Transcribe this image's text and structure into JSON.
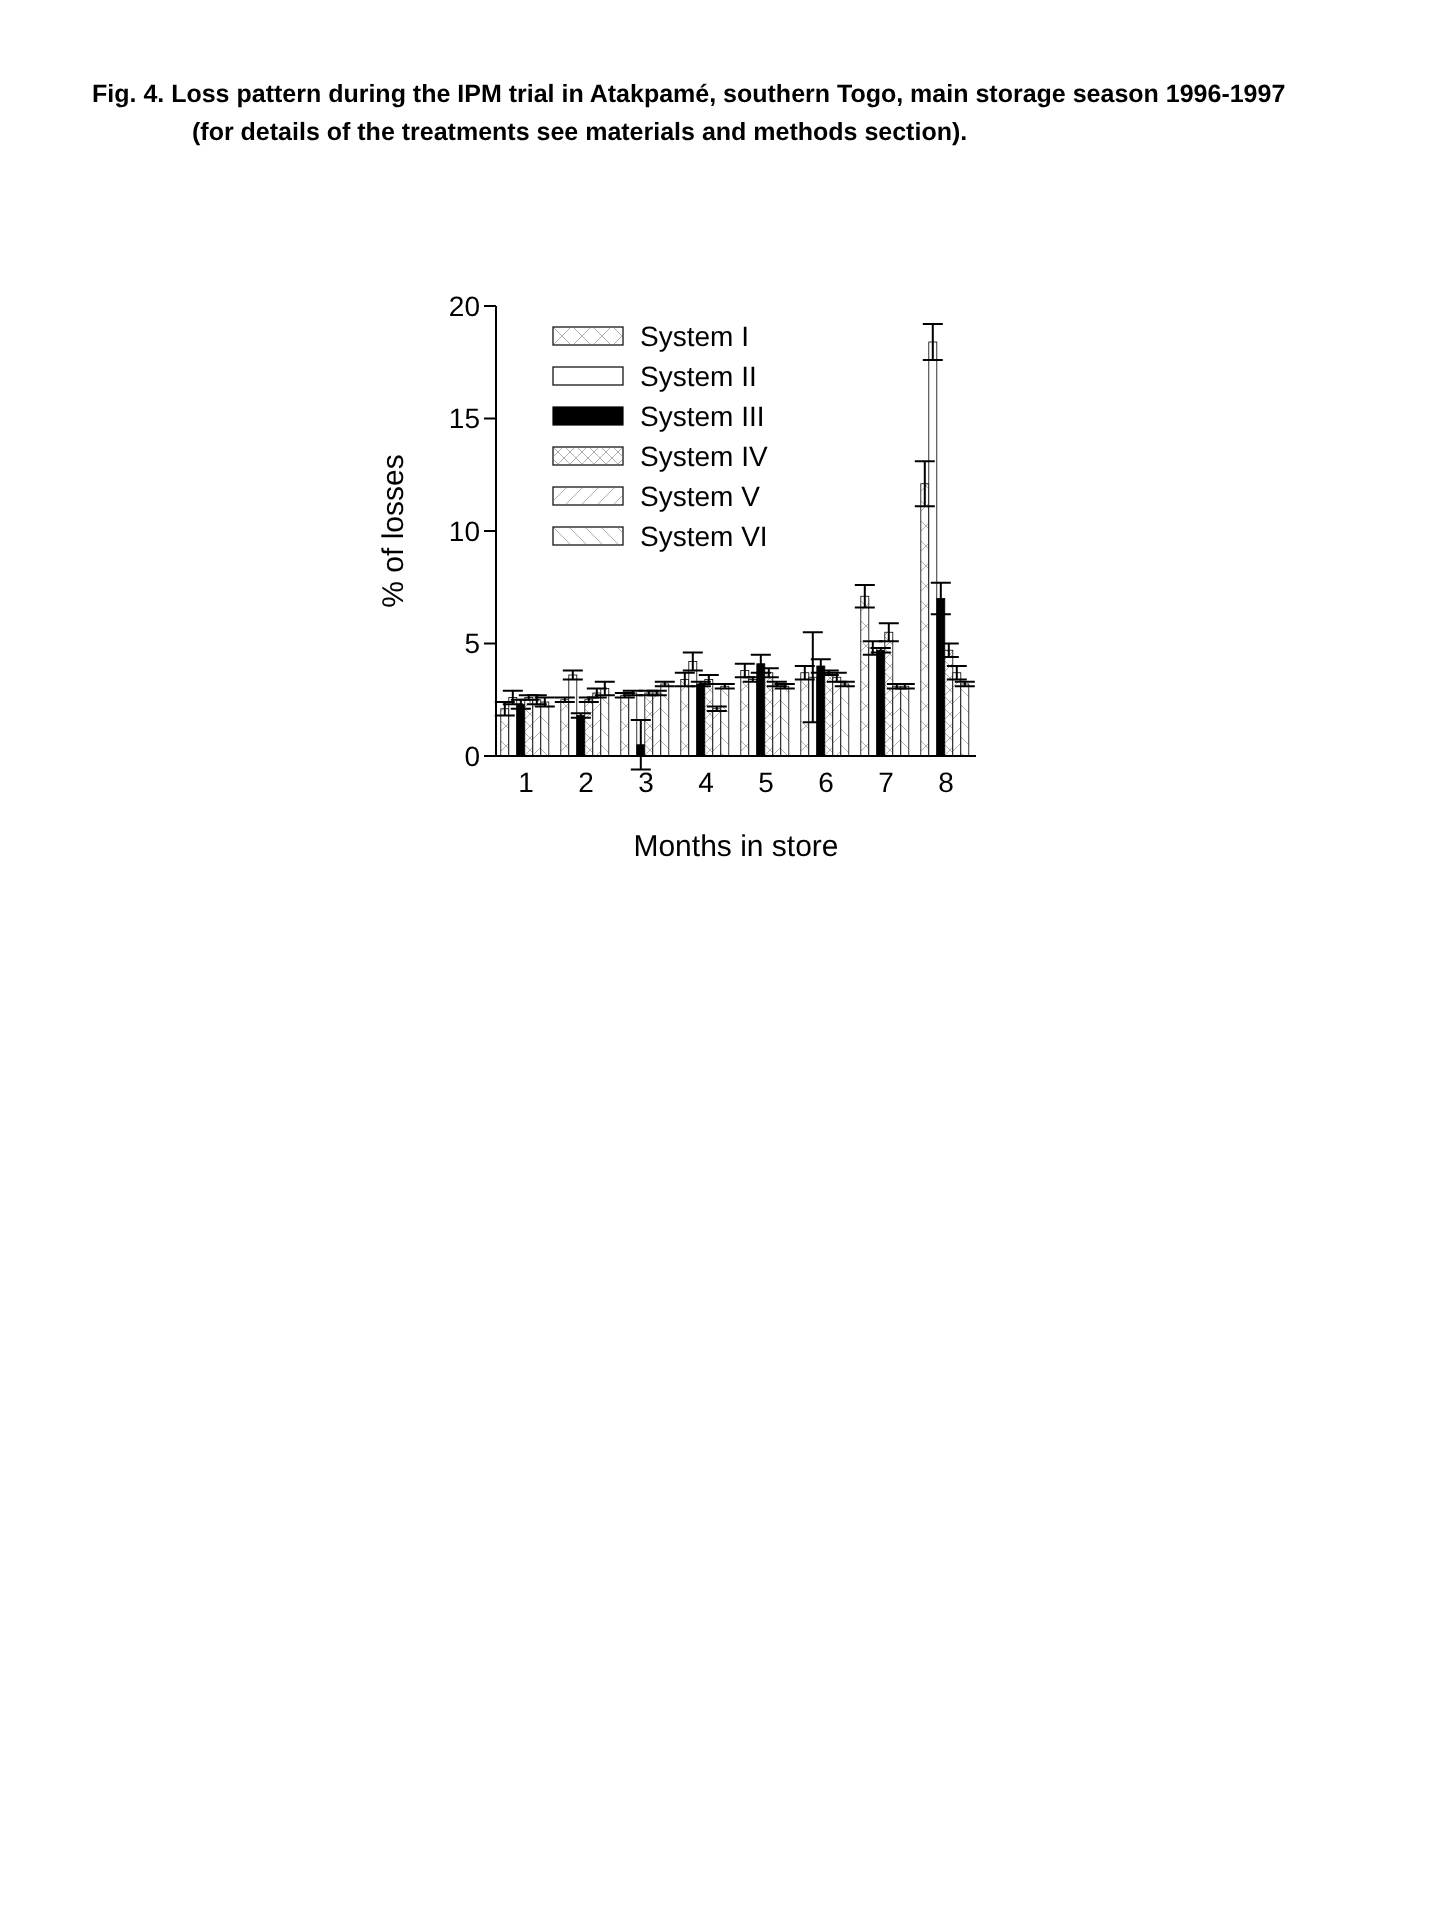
{
  "chart_data": {
    "type": "bar",
    "title": "Fig. 4. Loss pattern during the IPM trial in Atakpamé, southern Togo, main storage season 1996-1997 (for details of the treatments see materials and methods section).",
    "xlabel": "Months in store",
    "ylabel": "% of losses",
    "categories": [
      "1",
      "2",
      "3",
      "4",
      "5",
      "6",
      "7",
      "8"
    ],
    "series": [
      {
        "name": "System I",
        "color": "#ffffff",
        "values": [
          2.1,
          2.5,
          2.7,
          3.4,
          3.8,
          3.7,
          7.1,
          12.1
        ],
        "errors": [
          0.3,
          0.1,
          0.1,
          0.3,
          0.3,
          0.3,
          0.5,
          1.0
        ]
      },
      {
        "name": "System II",
        "color": "#ffffff",
        "values": [
          2.6,
          3.6,
          2.8,
          4.2,
          3.4,
          3.5,
          4.8,
          18.4
        ],
        "errors": [
          0.3,
          0.2,
          0.1,
          0.4,
          0.1,
          2.0,
          0.3,
          0.8
        ]
      },
      {
        "name": "System III",
        "color": "#000000",
        "values": [
          2.3,
          1.8,
          0.5,
          3.2,
          4.1,
          4.0,
          4.7,
          7.0
        ],
        "errors": [
          0.2,
          0.1,
          1.1,
          0.1,
          0.4,
          0.3,
          0.1,
          0.7
        ]
      },
      {
        "name": "System IV",
        "color": "#ffffff",
        "values": [
          2.6,
          2.5,
          2.8,
          3.4,
          3.7,
          3.7,
          5.5,
          4.7
        ],
        "errors": [
          0.1,
          0.1,
          0.1,
          0.2,
          0.2,
          0.1,
          0.4,
          0.3
        ]
      },
      {
        "name": "System V",
        "color": "#ffffff",
        "values": [
          2.5,
          2.8,
          2.8,
          2.1,
          3.2,
          3.5,
          3.1,
          3.7
        ],
        "errors": [
          0.2,
          0.2,
          0.1,
          0.1,
          0.1,
          0.2,
          0.1,
          0.3
        ]
      },
      {
        "name": "System VI",
        "color": "#ffffff",
        "values": [
          2.4,
          3.0,
          3.2,
          3.1,
          3.1,
          3.2,
          3.1,
          3.2
        ],
        "errors": [
          0.2,
          0.3,
          0.1,
          0.1,
          0.1,
          0.1,
          0.1,
          0.1
        ]
      }
    ],
    "ylim": [
      0,
      20
    ],
    "yticks": [
      0,
      5,
      10,
      15,
      20
    ],
    "grid": false,
    "legend": "top left"
  }
}
